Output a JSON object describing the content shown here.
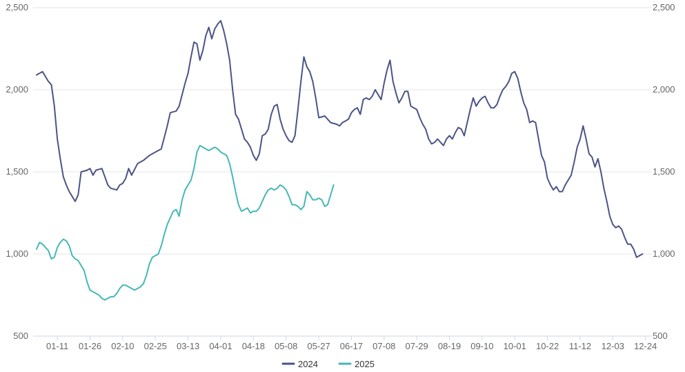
{
  "chart_data": {
    "type": "line",
    "title": "",
    "xlabel": "",
    "ylabel": "",
    "ylim": [
      500,
      2500
    ],
    "y_ticks": [
      500,
      1000,
      1500,
      2000,
      2500
    ],
    "y_tick_labels": [
      "500",
      "1,000",
      "1,500",
      "2,000",
      "2,500"
    ],
    "y_axis_left_and_right": true,
    "x_tick_labels": [
      "01-11",
      "01-26",
      "02-10",
      "02-25",
      "03-13",
      "04-01",
      "04-18",
      "05-08",
      "05-27",
      "06-17",
      "07-08",
      "07-29",
      "08-19",
      "09-10",
      "10-01",
      "10-22",
      "11-12",
      "12-03",
      "12-24"
    ],
    "x_tick_index": [
      7,
      18,
      29,
      40,
      51,
      62,
      73,
      84,
      95,
      106,
      117,
      128,
      139,
      150,
      161,
      172,
      183,
      194,
      205
    ],
    "x_count": 207,
    "grid": "horizontal",
    "legend_position": "bottom-center",
    "series": [
      {
        "name": "2024",
        "color": "#4b5385",
        "points": [
          [
            0,
            2090
          ],
          [
            2,
            2110
          ],
          [
            4,
            2050
          ],
          [
            5,
            2030
          ],
          [
            6,
            1900
          ],
          [
            7,
            1700
          ],
          [
            8,
            1580
          ],
          [
            9,
            1470
          ],
          [
            10,
            1420
          ],
          [
            11,
            1380
          ],
          [
            12,
            1350
          ],
          [
            13,
            1320
          ],
          [
            14,
            1360
          ],
          [
            15,
            1500
          ],
          [
            17,
            1510
          ],
          [
            18,
            1520
          ],
          [
            19,
            1480
          ],
          [
            20,
            1510
          ],
          [
            22,
            1520
          ],
          [
            23,
            1470
          ],
          [
            24,
            1420
          ],
          [
            25,
            1400
          ],
          [
            27,
            1390
          ],
          [
            28,
            1420
          ],
          [
            29,
            1430
          ],
          [
            30,
            1460
          ],
          [
            31,
            1520
          ],
          [
            32,
            1480
          ],
          [
            34,
            1550
          ],
          [
            36,
            1570
          ],
          [
            38,
            1600
          ],
          [
            40,
            1620
          ],
          [
            42,
            1640
          ],
          [
            44,
            1780
          ],
          [
            45,
            1860
          ],
          [
            47,
            1870
          ],
          [
            48,
            1900
          ],
          [
            50,
            2040
          ],
          [
            51,
            2100
          ],
          [
            52,
            2200
          ],
          [
            53,
            2290
          ],
          [
            54,
            2280
          ],
          [
            55,
            2180
          ],
          [
            56,
            2240
          ],
          [
            57,
            2330
          ],
          [
            58,
            2380
          ],
          [
            59,
            2310
          ],
          [
            60,
            2370
          ],
          [
            61,
            2400
          ],
          [
            62,
            2420
          ],
          [
            63,
            2360
          ],
          [
            64,
            2280
          ],
          [
            65,
            2180
          ],
          [
            66,
            2000
          ],
          [
            67,
            1850
          ],
          [
            68,
            1820
          ],
          [
            69,
            1760
          ],
          [
            70,
            1700
          ],
          [
            71,
            1680
          ],
          [
            72,
            1650
          ],
          [
            73,
            1600
          ],
          [
            74,
            1570
          ],
          [
            75,
            1610
          ],
          [
            76,
            1720
          ],
          [
            77,
            1730
          ],
          [
            78,
            1760
          ],
          [
            79,
            1850
          ],
          [
            80,
            1900
          ],
          [
            81,
            1910
          ],
          [
            82,
            1820
          ],
          [
            83,
            1760
          ],
          [
            84,
            1720
          ],
          [
            85,
            1690
          ],
          [
            86,
            1680
          ],
          [
            87,
            1720
          ],
          [
            88,
            1880
          ],
          [
            89,
            2050
          ],
          [
            90,
            2200
          ],
          [
            91,
            2140
          ],
          [
            92,
            2110
          ],
          [
            93,
            2050
          ],
          [
            94,
            1950
          ],
          [
            95,
            1830
          ],
          [
            97,
            1840
          ],
          [
            98,
            1820
          ],
          [
            99,
            1800
          ],
          [
            101,
            1790
          ],
          [
            102,
            1780
          ],
          [
            103,
            1800
          ],
          [
            104,
            1810
          ],
          [
            105,
            1820
          ],
          [
            106,
            1860
          ],
          [
            107,
            1880
          ],
          [
            108,
            1890
          ],
          [
            109,
            1850
          ],
          [
            110,
            1940
          ],
          [
            111,
            1950
          ],
          [
            112,
            1940
          ],
          [
            113,
            1960
          ],
          [
            114,
            2000
          ],
          [
            115,
            1970
          ],
          [
            116,
            1940
          ],
          [
            117,
            2040
          ],
          [
            118,
            2120
          ],
          [
            119,
            2180
          ],
          [
            120,
            2050
          ],
          [
            121,
            1980
          ],
          [
            122,
            1920
          ],
          [
            123,
            1950
          ],
          [
            124,
            1990
          ],
          [
            125,
            1990
          ],
          [
            126,
            1900
          ],
          [
            127,
            1890
          ],
          [
            128,
            1880
          ],
          [
            129,
            1830
          ],
          [
            130,
            1790
          ],
          [
            131,
            1760
          ],
          [
            132,
            1700
          ],
          [
            133,
            1670
          ],
          [
            134,
            1680
          ],
          [
            135,
            1700
          ],
          [
            136,
            1680
          ],
          [
            137,
            1660
          ],
          [
            138,
            1700
          ],
          [
            139,
            1720
          ],
          [
            140,
            1700
          ],
          [
            141,
            1740
          ],
          [
            142,
            1770
          ],
          [
            143,
            1760
          ],
          [
            144,
            1720
          ],
          [
            145,
            1800
          ],
          [
            146,
            1880
          ],
          [
            147,
            1950
          ],
          [
            148,
            1900
          ],
          [
            149,
            1930
          ],
          [
            150,
            1950
          ],
          [
            151,
            1960
          ],
          [
            152,
            1920
          ],
          [
            153,
            1890
          ],
          [
            154,
            1890
          ],
          [
            155,
            1910
          ],
          [
            156,
            1960
          ],
          [
            157,
            2000
          ],
          [
            158,
            2020
          ],
          [
            159,
            2050
          ],
          [
            160,
            2100
          ],
          [
            161,
            2110
          ],
          [
            162,
            2070
          ],
          [
            163,
            1990
          ],
          [
            164,
            1920
          ],
          [
            165,
            1880
          ],
          [
            166,
            1800
          ],
          [
            167,
            1810
          ],
          [
            168,
            1800
          ],
          [
            169,
            1700
          ],
          [
            170,
            1600
          ],
          [
            171,
            1560
          ],
          [
            172,
            1460
          ],
          [
            173,
            1420
          ],
          [
            174,
            1390
          ],
          [
            175,
            1410
          ],
          [
            176,
            1380
          ],
          [
            177,
            1380
          ],
          [
            178,
            1420
          ],
          [
            179,
            1450
          ],
          [
            180,
            1480
          ],
          [
            181,
            1560
          ],
          [
            182,
            1650
          ],
          [
            183,
            1700
          ],
          [
            184,
            1780
          ],
          [
            185,
            1700
          ],
          [
            186,
            1610
          ],
          [
            187,
            1590
          ],
          [
            188,
            1530
          ],
          [
            189,
            1580
          ],
          [
            190,
            1500
          ],
          [
            191,
            1400
          ],
          [
            192,
            1320
          ],
          [
            193,
            1230
          ],
          [
            194,
            1180
          ],
          [
            195,
            1160
          ],
          [
            196,
            1170
          ],
          [
            197,
            1150
          ],
          [
            198,
            1100
          ],
          [
            199,
            1060
          ],
          [
            200,
            1060
          ],
          [
            201,
            1030
          ],
          [
            202,
            980
          ],
          [
            203,
            990
          ],
          [
            204,
            1000
          ]
        ]
      },
      {
        "name": "2025",
        "color": "#44b8b6",
        "points": [
          [
            0,
            1030
          ],
          [
            1,
            1070
          ],
          [
            2,
            1060
          ],
          [
            3,
            1040
          ],
          [
            4,
            1020
          ],
          [
            5,
            970
          ],
          [
            6,
            980
          ],
          [
            7,
            1040
          ],
          [
            8,
            1070
          ],
          [
            9,
            1090
          ],
          [
            10,
            1080
          ],
          [
            11,
            1050
          ],
          [
            12,
            990
          ],
          [
            13,
            970
          ],
          [
            14,
            960
          ],
          [
            15,
            930
          ],
          [
            16,
            900
          ],
          [
            17,
            830
          ],
          [
            18,
            780
          ],
          [
            19,
            770
          ],
          [
            20,
            760
          ],
          [
            21,
            750
          ],
          [
            22,
            730
          ],
          [
            23,
            720
          ],
          [
            24,
            730
          ],
          [
            25,
            740
          ],
          [
            26,
            740
          ],
          [
            27,
            760
          ],
          [
            28,
            790
          ],
          [
            29,
            810
          ],
          [
            30,
            810
          ],
          [
            31,
            800
          ],
          [
            32,
            790
          ],
          [
            33,
            780
          ],
          [
            34,
            790
          ],
          [
            35,
            800
          ],
          [
            36,
            820
          ],
          [
            37,
            870
          ],
          [
            38,
            940
          ],
          [
            39,
            980
          ],
          [
            40,
            990
          ],
          [
            41,
            1000
          ],
          [
            42,
            1050
          ],
          [
            43,
            1120
          ],
          [
            44,
            1180
          ],
          [
            45,
            1220
          ],
          [
            46,
            1260
          ],
          [
            47,
            1270
          ],
          [
            48,
            1230
          ],
          [
            49,
            1330
          ],
          [
            50,
            1390
          ],
          [
            51,
            1420
          ],
          [
            52,
            1450
          ],
          [
            53,
            1520
          ],
          [
            54,
            1620
          ],
          [
            55,
            1660
          ],
          [
            56,
            1650
          ],
          [
            57,
            1640
          ],
          [
            58,
            1630
          ],
          [
            59,
            1640
          ],
          [
            60,
            1650
          ],
          [
            61,
            1640
          ],
          [
            62,
            1620
          ],
          [
            63,
            1610
          ],
          [
            64,
            1600
          ],
          [
            65,
            1550
          ],
          [
            66,
            1470
          ],
          [
            67,
            1380
          ],
          [
            68,
            1300
          ],
          [
            69,
            1260
          ],
          [
            70,
            1270
          ],
          [
            71,
            1280
          ],
          [
            72,
            1250
          ],
          [
            73,
            1260
          ],
          [
            74,
            1260
          ],
          [
            75,
            1280
          ],
          [
            76,
            1320
          ],
          [
            77,
            1360
          ],
          [
            78,
            1390
          ],
          [
            79,
            1400
          ],
          [
            80,
            1390
          ],
          [
            81,
            1400
          ],
          [
            82,
            1420
          ],
          [
            83,
            1410
          ],
          [
            84,
            1390
          ],
          [
            85,
            1350
          ],
          [
            86,
            1300
          ],
          [
            87,
            1300
          ],
          [
            88,
            1290
          ],
          [
            89,
            1270
          ],
          [
            90,
            1290
          ],
          [
            91,
            1380
          ],
          [
            92,
            1360
          ],
          [
            93,
            1330
          ],
          [
            94,
            1330
          ],
          [
            95,
            1340
          ],
          [
            96,
            1330
          ],
          [
            97,
            1290
          ],
          [
            98,
            1300
          ],
          [
            99,
            1360
          ],
          [
            100,
            1420
          ]
        ]
      }
    ]
  }
}
